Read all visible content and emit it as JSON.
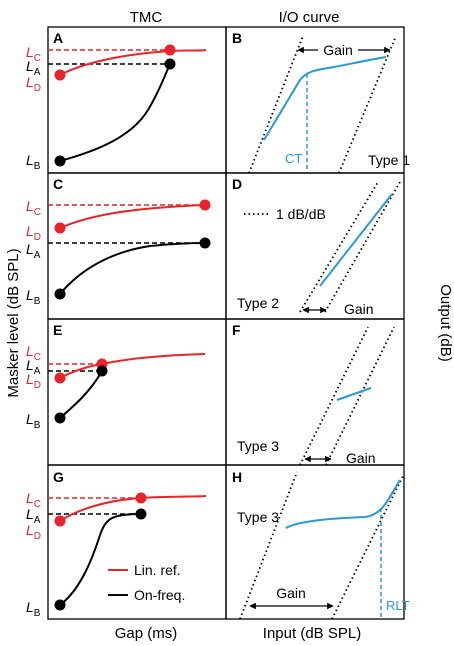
{
  "header": {
    "left_title": "TMC",
    "right_title": "I/O curve"
  },
  "axes": {
    "left_ylabel": "Masker level (dB SPL)",
    "right_ylabel": "Output (dB)",
    "left_xlabel": "Gap (ms)",
    "right_xlabel": "Input (dB SPL)"
  },
  "levels": {
    "LC": {
      "L": "L",
      "sub": "C"
    },
    "LA": {
      "L": "L",
      "sub": "A"
    },
    "LD": {
      "L": "L",
      "sub": "D"
    },
    "LB": {
      "L": "L",
      "sub": "B"
    }
  },
  "colors": {
    "linear_reference": "#e8242a",
    "on_frequency": "#000000",
    "io_curve": "#2a9ad6"
  },
  "panels": {
    "A": {
      "letter": "A"
    },
    "B": {
      "letter": "B",
      "gain": "Gain",
      "ct": "CT",
      "type": "Type 1"
    },
    "C": {
      "letter": "C"
    },
    "D": {
      "letter": "D",
      "slope_legend": "1 dB/dB",
      "gain": "Gain",
      "type": "Type 2"
    },
    "E": {
      "letter": "E"
    },
    "F": {
      "letter": "F",
      "gain": "Gain",
      "type": "Type 3"
    },
    "G": {
      "letter": "G",
      "legend_linref": "Lin. ref.",
      "legend_onfreq": "On-freq."
    },
    "H": {
      "letter": "H",
      "gain": "Gain",
      "rlt": "RLT",
      "type": "Type 3"
    }
  }
}
